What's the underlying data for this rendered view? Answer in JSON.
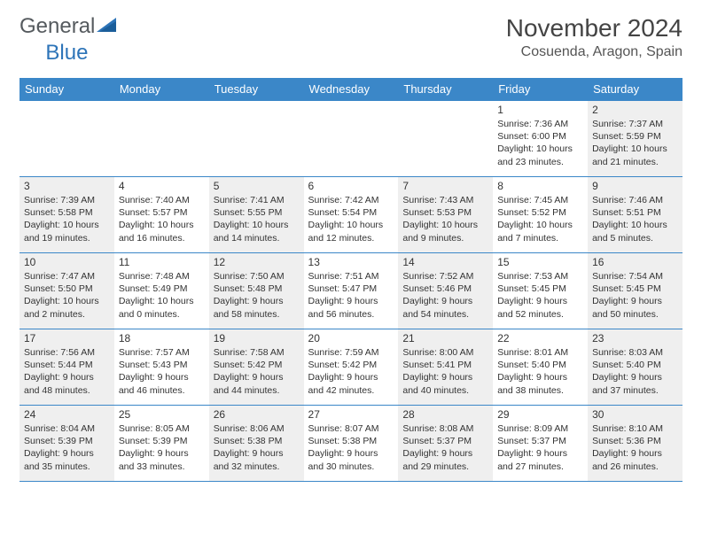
{
  "brand": {
    "part1": "General",
    "part2": "Blue"
  },
  "title": "November 2024",
  "location": "Cosuenda, Aragon, Spain",
  "colors": {
    "header_bg": "#3b87c8",
    "header_text": "#ffffff",
    "border": "#3b87c8",
    "shade_bg": "#efefef",
    "text": "#333333",
    "logo_gray": "#555a5e",
    "logo_blue": "#2d74b8"
  },
  "typography": {
    "month_title_fontsize": 28,
    "location_fontsize": 16,
    "day_header_fontsize": 13,
    "daynum_fontsize": 12,
    "cell_fontsize": 10.5
  },
  "day_headers": [
    "Sunday",
    "Monday",
    "Tuesday",
    "Wednesday",
    "Thursday",
    "Friday",
    "Saturday"
  ],
  "weeks": [
    [
      null,
      null,
      null,
      null,
      null,
      {
        "n": "1",
        "sr": "7:36 AM",
        "ss": "6:00 PM",
        "dl": "10 hours and 23 minutes."
      },
      {
        "n": "2",
        "sr": "7:37 AM",
        "ss": "5:59 PM",
        "dl": "10 hours and 21 minutes."
      }
    ],
    [
      {
        "n": "3",
        "sr": "7:39 AM",
        "ss": "5:58 PM",
        "dl": "10 hours and 19 minutes."
      },
      {
        "n": "4",
        "sr": "7:40 AM",
        "ss": "5:57 PM",
        "dl": "10 hours and 16 minutes."
      },
      {
        "n": "5",
        "sr": "7:41 AM",
        "ss": "5:55 PM",
        "dl": "10 hours and 14 minutes."
      },
      {
        "n": "6",
        "sr": "7:42 AM",
        "ss": "5:54 PM",
        "dl": "10 hours and 12 minutes."
      },
      {
        "n": "7",
        "sr": "7:43 AM",
        "ss": "5:53 PM",
        "dl": "10 hours and 9 minutes."
      },
      {
        "n": "8",
        "sr": "7:45 AM",
        "ss": "5:52 PM",
        "dl": "10 hours and 7 minutes."
      },
      {
        "n": "9",
        "sr": "7:46 AM",
        "ss": "5:51 PM",
        "dl": "10 hours and 5 minutes."
      }
    ],
    [
      {
        "n": "10",
        "sr": "7:47 AM",
        "ss": "5:50 PM",
        "dl": "10 hours and 2 minutes."
      },
      {
        "n": "11",
        "sr": "7:48 AM",
        "ss": "5:49 PM",
        "dl": "10 hours and 0 minutes."
      },
      {
        "n": "12",
        "sr": "7:50 AM",
        "ss": "5:48 PM",
        "dl": "9 hours and 58 minutes."
      },
      {
        "n": "13",
        "sr": "7:51 AM",
        "ss": "5:47 PM",
        "dl": "9 hours and 56 minutes."
      },
      {
        "n": "14",
        "sr": "7:52 AM",
        "ss": "5:46 PM",
        "dl": "9 hours and 54 minutes."
      },
      {
        "n": "15",
        "sr": "7:53 AM",
        "ss": "5:45 PM",
        "dl": "9 hours and 52 minutes."
      },
      {
        "n": "16",
        "sr": "7:54 AM",
        "ss": "5:45 PM",
        "dl": "9 hours and 50 minutes."
      }
    ],
    [
      {
        "n": "17",
        "sr": "7:56 AM",
        "ss": "5:44 PM",
        "dl": "9 hours and 48 minutes."
      },
      {
        "n": "18",
        "sr": "7:57 AM",
        "ss": "5:43 PM",
        "dl": "9 hours and 46 minutes."
      },
      {
        "n": "19",
        "sr": "7:58 AM",
        "ss": "5:42 PM",
        "dl": "9 hours and 44 minutes."
      },
      {
        "n": "20",
        "sr": "7:59 AM",
        "ss": "5:42 PM",
        "dl": "9 hours and 42 minutes."
      },
      {
        "n": "21",
        "sr": "8:00 AM",
        "ss": "5:41 PM",
        "dl": "9 hours and 40 minutes."
      },
      {
        "n": "22",
        "sr": "8:01 AM",
        "ss": "5:40 PM",
        "dl": "9 hours and 38 minutes."
      },
      {
        "n": "23",
        "sr": "8:03 AM",
        "ss": "5:40 PM",
        "dl": "9 hours and 37 minutes."
      }
    ],
    [
      {
        "n": "24",
        "sr": "8:04 AM",
        "ss": "5:39 PM",
        "dl": "9 hours and 35 minutes."
      },
      {
        "n": "25",
        "sr": "8:05 AM",
        "ss": "5:39 PM",
        "dl": "9 hours and 33 minutes."
      },
      {
        "n": "26",
        "sr": "8:06 AM",
        "ss": "5:38 PM",
        "dl": "9 hours and 32 minutes."
      },
      {
        "n": "27",
        "sr": "8:07 AM",
        "ss": "5:38 PM",
        "dl": "9 hours and 30 minutes."
      },
      {
        "n": "28",
        "sr": "8:08 AM",
        "ss": "5:37 PM",
        "dl": "9 hours and 29 minutes."
      },
      {
        "n": "29",
        "sr": "8:09 AM",
        "ss": "5:37 PM",
        "dl": "9 hours and 27 minutes."
      },
      {
        "n": "30",
        "sr": "8:10 AM",
        "ss": "5:36 PM",
        "dl": "9 hours and 26 minutes."
      }
    ]
  ],
  "labels": {
    "sunrise": "Sunrise:",
    "sunset": "Sunset:",
    "daylight": "Daylight:"
  }
}
